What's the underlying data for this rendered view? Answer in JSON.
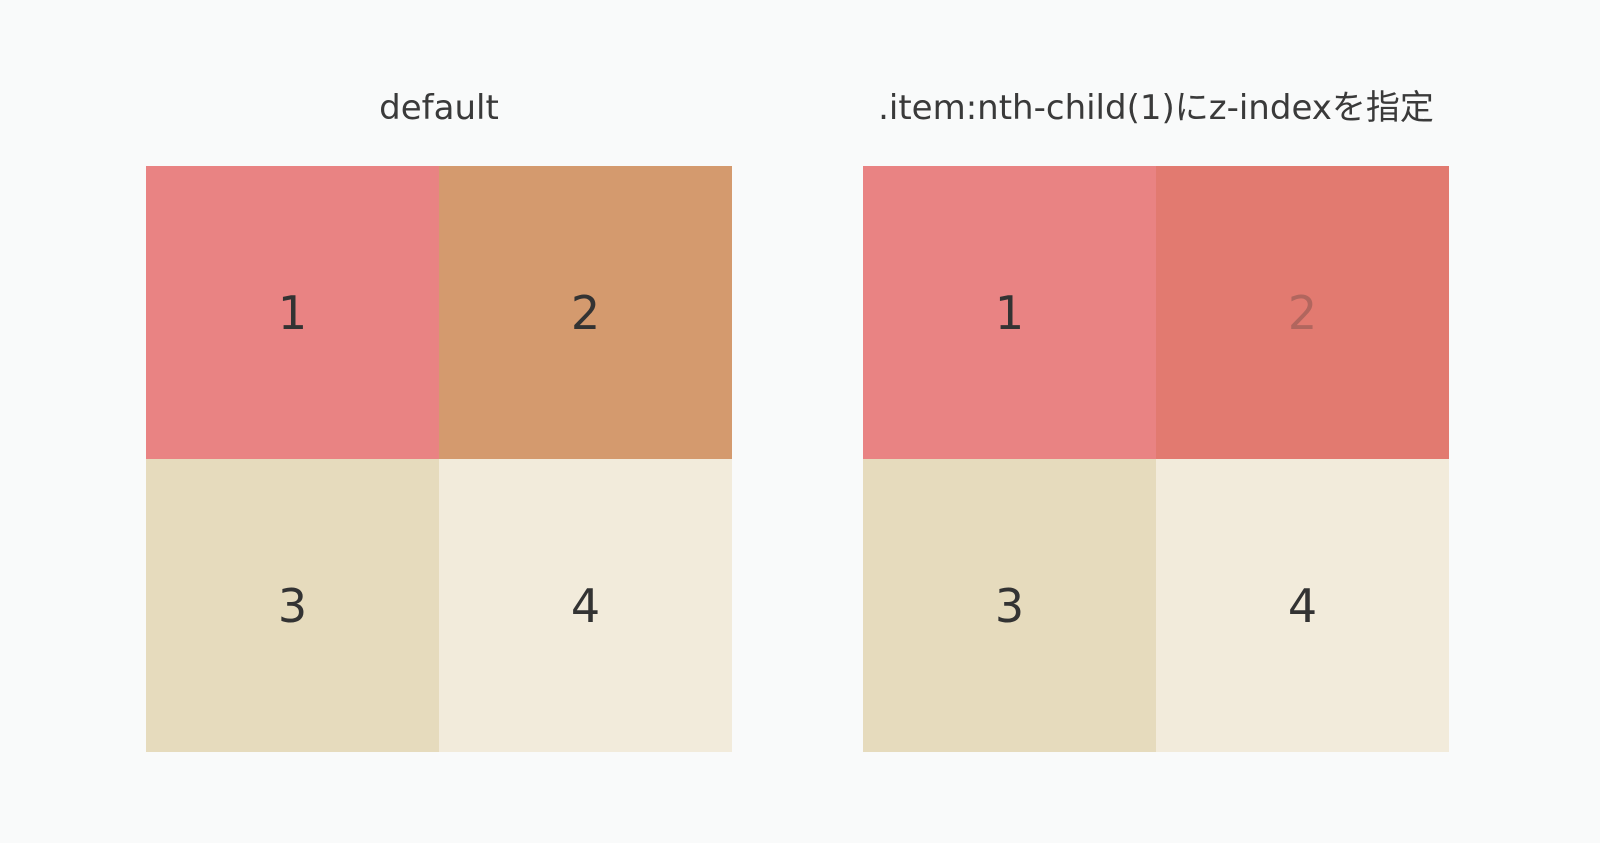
{
  "panels": [
    {
      "title": "default",
      "items": [
        {
          "label": "1",
          "color": "#e98383"
        },
        {
          "label": "2",
          "color": "#d49a6e"
        },
        {
          "label": "3",
          "color": "#e6dbbd"
        },
        {
          "label": "4",
          "color": "#f2ebdb"
        }
      ]
    },
    {
      "title": ".item:nth-child(1)にz-indexを指定",
      "items": [
        {
          "label": "1",
          "color": "#e98383"
        },
        {
          "label": "2",
          "color": "#e27a70",
          "dimmed": true
        },
        {
          "label": "3",
          "color": "#e6dbbd"
        },
        {
          "label": "4",
          "color": "#f2ebdb"
        }
      ]
    }
  ]
}
